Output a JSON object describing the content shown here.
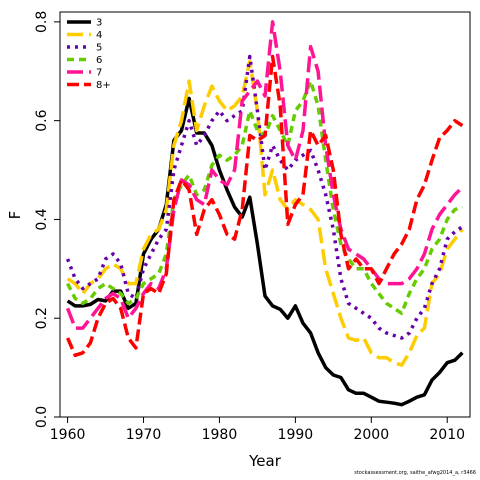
{
  "footnote": "stockassessment.org, saithe_afwg2014_a, r3466",
  "chart_data": {
    "type": "line",
    "xlabel": "Year",
    "ylabel": "F",
    "xlim": [
      1959,
      2013
    ],
    "ylim": [
      0,
      0.82
    ],
    "x_ticks": [
      1960,
      1970,
      1980,
      1990,
      2000,
      2010
    ],
    "y_ticks": [
      0.0,
      0.2,
      0.4,
      0.6,
      0.8
    ],
    "legend_position": "top-left",
    "grid": false,
    "x": [
      1960,
      1961,
      1962,
      1963,
      1964,
      1965,
      1966,
      1967,
      1968,
      1969,
      1970,
      1971,
      1972,
      1973,
      1974,
      1975,
      1976,
      1977,
      1978,
      1979,
      1980,
      1981,
      1982,
      1983,
      1984,
      1985,
      1986,
      1987,
      1988,
      1989,
      1990,
      1991,
      1992,
      1993,
      1994,
      1995,
      1996,
      1997,
      1998,
      1999,
      2000,
      2001,
      2002,
      2003,
      2004,
      2005,
      2006,
      2007,
      2008,
      2009,
      2010,
      2011,
      2012
    ],
    "series": [
      {
        "name": "3",
        "color": "#000000",
        "dash": "solid",
        "values": [
          0.235,
          0.225,
          0.225,
          0.228,
          0.238,
          0.235,
          0.255,
          0.255,
          0.22,
          0.23,
          0.33,
          0.36,
          0.38,
          0.43,
          0.56,
          0.58,
          0.645,
          0.575,
          0.575,
          0.55,
          0.5,
          0.46,
          0.425,
          0.405,
          0.445,
          0.35,
          0.245,
          0.225,
          0.218,
          0.2,
          0.225,
          0.19,
          0.17,
          0.13,
          0.1,
          0.085,
          0.08,
          0.055,
          0.048,
          0.048,
          0.04,
          0.032,
          0.03,
          0.028,
          0.025,
          0.032,
          0.04,
          0.045,
          0.075,
          0.09,
          0.11,
          0.115,
          0.13
        ]
      },
      {
        "name": "4",
        "color": "#FFCC00",
        "dash": "long",
        "values": [
          0.28,
          0.27,
          0.25,
          0.27,
          0.28,
          0.3,
          0.31,
          0.3,
          0.27,
          0.27,
          0.34,
          0.37,
          0.38,
          0.42,
          0.55,
          0.6,
          0.68,
          0.58,
          0.63,
          0.67,
          0.64,
          0.62,
          0.63,
          0.65,
          0.72,
          0.62,
          0.45,
          0.5,
          0.44,
          0.42,
          0.44,
          0.43,
          0.42,
          0.4,
          0.3,
          0.25,
          0.2,
          0.16,
          0.155,
          0.16,
          0.13,
          0.12,
          0.12,
          0.11,
          0.105,
          0.13,
          0.165,
          0.18,
          0.27,
          0.29,
          0.34,
          0.36,
          0.38
        ]
      },
      {
        "name": "5",
        "color": "#6600AA",
        "dash": "dot",
        "values": [
          0.32,
          0.28,
          0.26,
          0.27,
          0.28,
          0.32,
          0.33,
          0.31,
          0.25,
          0.24,
          0.3,
          0.33,
          0.36,
          0.38,
          0.5,
          0.55,
          0.6,
          0.55,
          0.57,
          0.6,
          0.62,
          0.6,
          0.61,
          0.62,
          0.73,
          0.62,
          0.5,
          0.55,
          0.52,
          0.5,
          0.52,
          0.53,
          0.54,
          0.5,
          0.45,
          0.38,
          0.28,
          0.23,
          0.22,
          0.21,
          0.2,
          0.18,
          0.17,
          0.165,
          0.16,
          0.17,
          0.2,
          0.22,
          0.27,
          0.3,
          0.36,
          0.375,
          0.385
        ]
      },
      {
        "name": "6",
        "color": "#66CC00",
        "dash": "medium",
        "values": [
          0.27,
          0.24,
          0.23,
          0.24,
          0.26,
          0.27,
          0.26,
          0.25,
          0.23,
          0.24,
          0.27,
          0.28,
          0.29,
          0.33,
          0.44,
          0.47,
          0.49,
          0.45,
          0.46,
          0.51,
          0.53,
          0.52,
          0.53,
          0.55,
          0.62,
          0.58,
          0.57,
          0.61,
          0.58,
          0.55,
          0.62,
          0.64,
          0.68,
          0.63,
          0.52,
          0.42,
          0.35,
          0.32,
          0.3,
          0.3,
          0.27,
          0.25,
          0.23,
          0.22,
          0.21,
          0.25,
          0.28,
          0.3,
          0.34,
          0.36,
          0.4,
          0.42,
          0.425
        ]
      },
      {
        "name": "7",
        "color": "#FF1493",
        "dash": "long",
        "values": [
          0.22,
          0.18,
          0.18,
          0.2,
          0.22,
          0.24,
          0.25,
          0.24,
          0.2,
          0.22,
          0.25,
          0.27,
          0.26,
          0.3,
          0.42,
          0.48,
          0.47,
          0.44,
          0.43,
          0.5,
          0.48,
          0.47,
          0.5,
          0.64,
          0.66,
          0.68,
          0.65,
          0.8,
          0.7,
          0.55,
          0.52,
          0.58,
          0.75,
          0.7,
          0.55,
          0.45,
          0.38,
          0.34,
          0.33,
          0.32,
          0.3,
          0.28,
          0.27,
          0.27,
          0.27,
          0.28,
          0.3,
          0.33,
          0.38,
          0.41,
          0.43,
          0.45,
          0.465
        ]
      },
      {
        "name": "8+",
        "color": "#FF0000",
        "dash": "dash",
        "values": [
          0.16,
          0.125,
          0.13,
          0.15,
          0.2,
          0.23,
          0.24,
          0.22,
          0.16,
          0.14,
          0.25,
          0.26,
          0.25,
          0.29,
          0.44,
          0.48,
          0.46,
          0.37,
          0.42,
          0.44,
          0.41,
          0.37,
          0.36,
          0.42,
          0.57,
          0.56,
          0.57,
          0.73,
          0.63,
          0.39,
          0.43,
          0.45,
          0.58,
          0.55,
          0.57,
          0.5,
          0.37,
          0.3,
          0.32,
          0.3,
          0.3,
          0.27,
          0.3,
          0.33,
          0.35,
          0.38,
          0.44,
          0.47,
          0.52,
          0.565,
          0.58,
          0.6,
          0.59
        ]
      }
    ]
  }
}
